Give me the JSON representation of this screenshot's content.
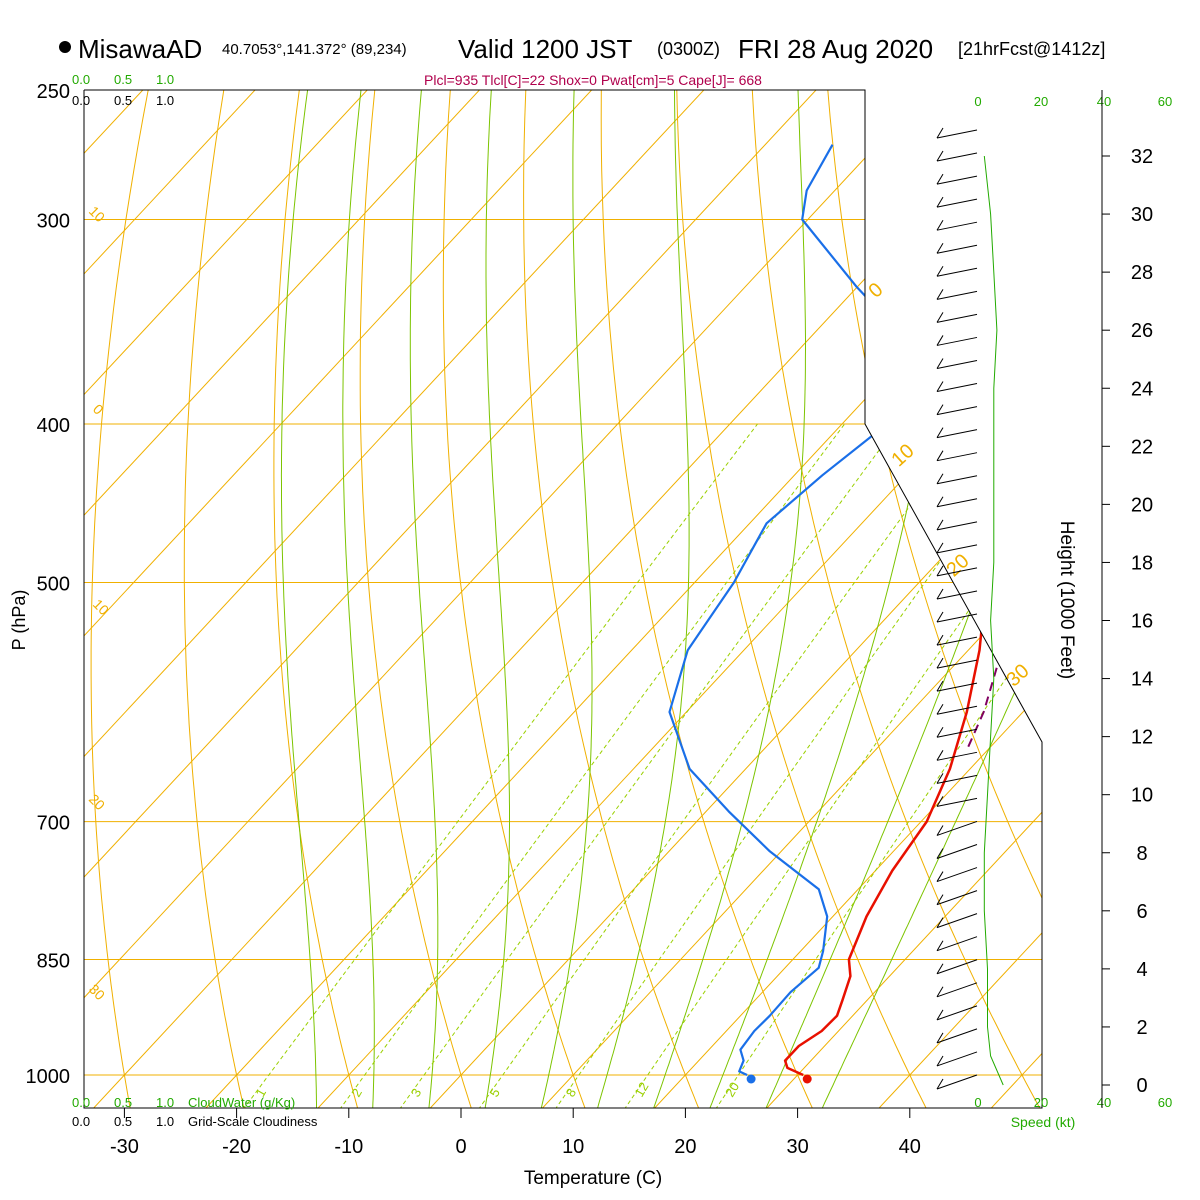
{
  "header": {
    "station_name": "MisawaAD",
    "coords": "40.7053°,141.372° (89,234)",
    "valid_prefix": "Valid 1200 JST",
    "valid_z": "(0300Z)",
    "valid_date": "FRI 28 Aug 2020",
    "forecast_tag": "[21hrFcst@1412z]",
    "indices": "Plcl=935 Tlcl[C]=22 Shox=0 Pwat[cm]=5 Cape[J]= 668"
  },
  "colors": {
    "isotherm": "#f0b000",
    "dry_adiabat": "#7cc400",
    "mixing_ratio": "#9ad000",
    "temperature": "#e81000",
    "dewpoint": "#1a6fe8",
    "parcel": "#800060",
    "green_text": "#22aa00",
    "indices_text": "#b0004c"
  },
  "cloud_scale_top": {
    "green": [
      "0.0",
      "0.5",
      "1.0"
    ],
    "black": [
      "0.0",
      "0.5",
      "1.0"
    ]
  },
  "cloud_scale_bottom": {
    "green": [
      "0.0",
      "0.5",
      "1.0"
    ],
    "green_label": "CloudWater (g/Kg)",
    "black": [
      "0.0",
      "0.5",
      "1.0"
    ],
    "black_label": "Grid-Scale Cloudiness"
  },
  "speed_axis": {
    "ticks_top": [
      "0",
      "20",
      "40",
      "60"
    ],
    "ticks_bottom": [
      "0",
      "20",
      "40",
      "60"
    ],
    "label": "Speed (kt)"
  },
  "height_axis": {
    "label": "Height (1000 Feet)",
    "ticks": [
      "0",
      "2",
      "4",
      "6",
      "8",
      "10",
      "12",
      "14",
      "16",
      "18",
      "20",
      "22",
      "24",
      "26",
      "28",
      "30",
      "32"
    ]
  },
  "chart_data": {
    "type": "line",
    "title": "Skew-T log-P sounding",
    "xlabel": "Temperature (C)",
    "ylabel": "P (hPa)",
    "x_ticks": [
      "-30",
      "-20",
      "-10",
      "0",
      "10",
      "20",
      "30",
      "40"
    ],
    "y_ticks": [
      "250",
      "300",
      "400",
      "500",
      "700",
      "850",
      "1000"
    ],
    "isotherm_labels": [
      "10",
      "0",
      "10",
      "20",
      "30"
    ],
    "left_isotherm_labels": [
      "10",
      "0",
      "10",
      "20",
      "30"
    ],
    "mixing_ratio_labels": [
      "1",
      "2",
      "3",
      "5",
      "8",
      "12",
      "20"
    ],
    "series": [
      {
        "name": "Temperature",
        "points": [
          [
            1000,
            30.5
          ],
          [
            990,
            28.5
          ],
          [
            980,
            27.7
          ],
          [
            960,
            27.7
          ],
          [
            940,
            28.5
          ],
          [
            920,
            28.6
          ],
          [
            900,
            27.8
          ],
          [
            870,
            26.5
          ],
          [
            850,
            25.0
          ],
          [
            800,
            23.0
          ],
          [
            750,
            21.5
          ],
          [
            700,
            20.5
          ],
          [
            650,
            18.2
          ],
          [
            600,
            15.0
          ],
          [
            550,
            11.0
          ],
          [
            500,
            6.0
          ],
          [
            450,
            -0.5
          ],
          [
            400,
            -7.5
          ],
          [
            350,
            -16.0
          ],
          [
            300,
            -26.5
          ],
          [
            270,
            -34.0
          ]
        ]
      },
      {
        "name": "Dewpoint",
        "points": [
          [
            1000,
            25.5
          ],
          [
            995,
            24.5
          ],
          [
            980,
            24.0
          ],
          [
            965,
            22.8
          ],
          [
            940,
            22.5
          ],
          [
            920,
            22.6
          ],
          [
            890,
            22.5
          ],
          [
            860,
            23.0
          ],
          [
            840,
            22.0
          ],
          [
            800,
            19.5
          ],
          [
            770,
            16.5
          ],
          [
            730,
            9.0
          ],
          [
            690,
            2.0
          ],
          [
            650,
            -5.0
          ],
          [
            600,
            -11.5
          ],
          [
            550,
            -15.0
          ],
          [
            500,
            -16.5
          ],
          [
            460,
            -18.5
          ],
          [
            430,
            -17.5
          ],
          [
            400,
            -16.0
          ],
          [
            370,
            -18.0
          ],
          [
            350,
            -23.0
          ],
          [
            330,
            -30.0
          ],
          [
            300,
            -40.5
          ],
          [
            288,
            -42.5
          ],
          [
            270,
            -44.0
          ]
        ]
      },
      {
        "name": "Parcel",
        "points": [
          [
            630,
            18.0
          ],
          [
            600,
            16.5
          ],
          [
            550,
            13.0
          ],
          [
            500,
            9.0
          ],
          [
            450,
            4.0
          ],
          [
            400,
            -2.0
          ],
          [
            350,
            -10.5
          ],
          [
            300,
            -21.0
          ],
          [
            270,
            -28.5
          ]
        ]
      }
    ],
    "surface_temperature": 30.5,
    "surface_dewpoint": 25.5,
    "wind_speed_profile": [
      [
        0,
        8
      ],
      [
        1,
        4
      ],
      [
        2,
        3
      ],
      [
        4,
        3
      ],
      [
        6,
        2
      ],
      [
        8,
        2
      ],
      [
        10,
        3
      ],
      [
        12,
        4
      ],
      [
        14,
        5
      ],
      [
        16,
        4
      ],
      [
        18,
        5
      ],
      [
        20,
        5
      ],
      [
        22,
        5
      ],
      [
        24,
        5
      ],
      [
        26,
        6
      ],
      [
        28,
        5
      ],
      [
        30,
        4
      ],
      [
        32,
        2
      ]
    ],
    "grid": true
  }
}
